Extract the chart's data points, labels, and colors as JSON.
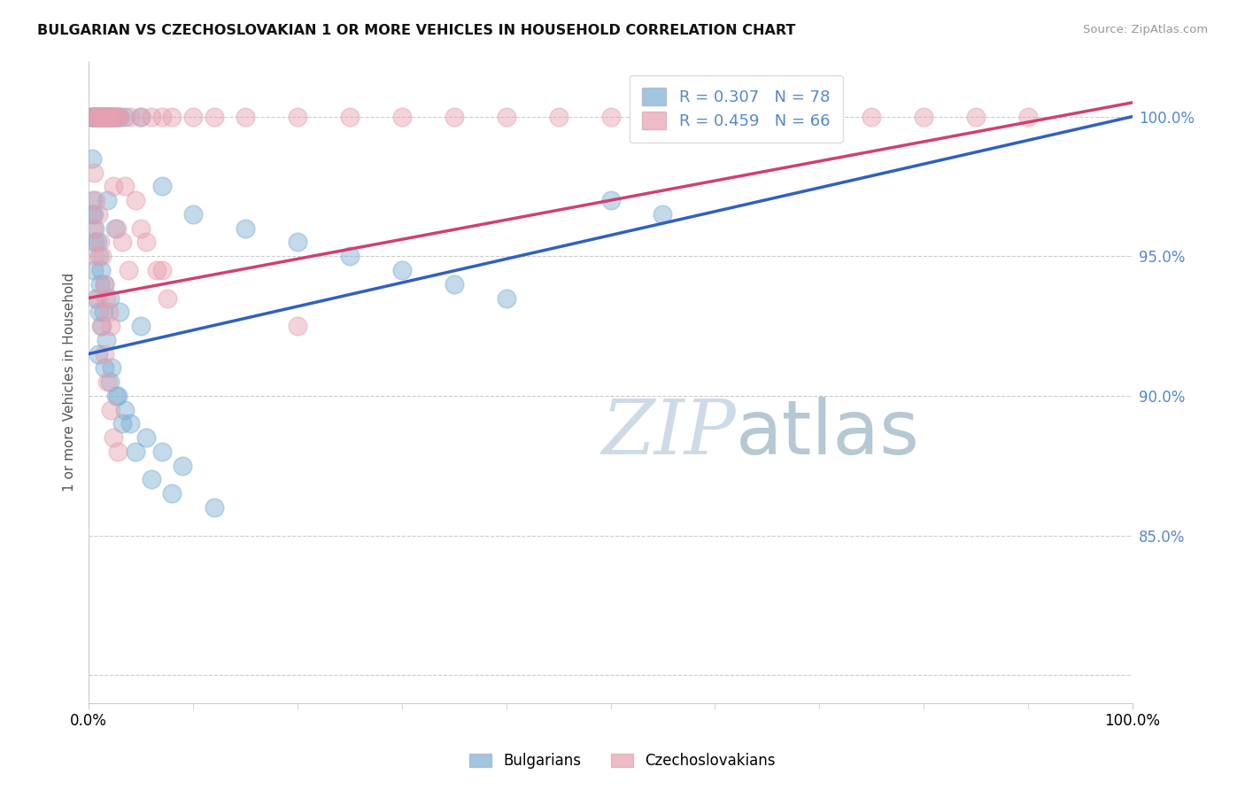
{
  "title": "BULGARIAN VS CZECHOSLOVAKIAN 1 OR MORE VEHICLES IN HOUSEHOLD CORRELATION CHART",
  "source": "Source: ZipAtlas.com",
  "ylabel": "1 or more Vehicles in Household",
  "xmin": 0.0,
  "xmax": 100.0,
  "ymin": 79.0,
  "ymax": 102.0,
  "yticks": [
    80.0,
    85.0,
    90.0,
    95.0,
    100.0
  ],
  "ytick_labels": [
    "",
    "85.0%",
    "90.0%",
    "95.0%",
    "100.0%"
  ],
  "blue_R": 0.307,
  "blue_N": 78,
  "pink_R": 0.459,
  "pink_N": 66,
  "blue_color": "#7bafd4",
  "pink_color": "#e8a0b0",
  "blue_line_color": "#3060c0",
  "pink_line_color": "#d04070",
  "legend_label_blue": "Bulgarians",
  "legend_label_pink": "Czechoslovakians",
  "tick_color": "#5588cc",
  "watermark_zip_color": "#c8d8e8",
  "watermark_atlas_color": "#a0b8cc",
  "blue_x": [
    0.2,
    0.3,
    0.4,
    0.5,
    0.6,
    0.7,
    0.8,
    0.9,
    1.0,
    1.1,
    1.2,
    1.3,
    1.4,
    1.5,
    1.6,
    1.7,
    1.8,
    1.9,
    2.0,
    2.1,
    2.2,
    2.3,
    2.5,
    2.7,
    3.0,
    3.5,
    0.3,
    0.4,
    0.5,
    0.6,
    0.8,
    1.0,
    1.2,
    1.5,
    2.0,
    3.0,
    5.0,
    7.0,
    10.0,
    15.0,
    20.0,
    25.0,
    30.0,
    35.0,
    40.0,
    50.0,
    55.0,
    60.0,
    65.0,
    70.0,
    5.0,
    1.8,
    2.5,
    0.5,
    0.7,
    1.0,
    1.3,
    0.9,
    1.5,
    2.0,
    2.8,
    3.5,
    4.0,
    5.5,
    7.0,
    9.0,
    0.3,
    0.6,
    1.1,
    1.4,
    1.7,
    2.2,
    2.6,
    3.2,
    4.5,
    6.0,
    8.0,
    12.0
  ],
  "blue_y": [
    100.0,
    100.0,
    100.0,
    100.0,
    100.0,
    100.0,
    100.0,
    100.0,
    100.0,
    100.0,
    100.0,
    100.0,
    100.0,
    100.0,
    100.0,
    100.0,
    100.0,
    100.0,
    100.0,
    100.0,
    100.0,
    100.0,
    100.0,
    100.0,
    100.0,
    100.0,
    98.5,
    97.0,
    96.5,
    96.0,
    95.5,
    95.0,
    94.5,
    94.0,
    93.5,
    93.0,
    92.5,
    97.5,
    96.5,
    96.0,
    95.5,
    95.0,
    94.5,
    94.0,
    93.5,
    97.0,
    96.5,
    100.0,
    100.0,
    100.0,
    100.0,
    97.0,
    96.0,
    94.5,
    93.5,
    93.0,
    92.5,
    91.5,
    91.0,
    90.5,
    90.0,
    89.5,
    89.0,
    88.5,
    88.0,
    87.5,
    96.5,
    95.5,
    94.0,
    93.0,
    92.0,
    91.0,
    90.0,
    89.0,
    88.0,
    87.0,
    86.5,
    86.0
  ],
  "pink_x": [
    0.4,
    0.6,
    0.8,
    1.0,
    1.2,
    1.4,
    1.6,
    1.8,
    2.0,
    2.2,
    2.5,
    2.8,
    3.0,
    4.0,
    5.0,
    6.0,
    7.0,
    8.0,
    10.0,
    12.0,
    15.0,
    20.0,
    25.0,
    30.0,
    35.0,
    40.0,
    45.0,
    50.0,
    55.0,
    60.0,
    65.0,
    70.0,
    75.0,
    80.0,
    85.0,
    90.0,
    0.5,
    0.7,
    0.9,
    1.1,
    1.3,
    1.5,
    1.7,
    1.9,
    2.1,
    2.4,
    2.7,
    3.2,
    3.8,
    4.5,
    5.5,
    6.5,
    7.5,
    0.4,
    0.6,
    0.9,
    1.2,
    1.5,
    1.8,
    2.1,
    2.4,
    2.8,
    3.5,
    5.0,
    7.0,
    20.0
  ],
  "pink_y": [
    100.0,
    100.0,
    100.0,
    100.0,
    100.0,
    100.0,
    100.0,
    100.0,
    100.0,
    100.0,
    100.0,
    100.0,
    100.0,
    100.0,
    100.0,
    100.0,
    100.0,
    100.0,
    100.0,
    100.0,
    100.0,
    100.0,
    100.0,
    100.0,
    100.0,
    100.0,
    100.0,
    100.0,
    100.0,
    100.0,
    100.0,
    100.0,
    100.0,
    100.0,
    100.0,
    100.0,
    98.0,
    97.0,
    96.5,
    95.5,
    95.0,
    94.0,
    93.5,
    93.0,
    92.5,
    97.5,
    96.0,
    95.5,
    94.5,
    97.0,
    95.5,
    94.5,
    93.5,
    96.0,
    95.0,
    93.5,
    92.5,
    91.5,
    90.5,
    89.5,
    88.5,
    88.0,
    97.5,
    96.0,
    94.5,
    92.5
  ],
  "line_blue_x0": 0.0,
  "line_blue_x1": 100.0,
  "line_blue_y0": 91.5,
  "line_blue_y1": 100.0,
  "line_pink_x0": 0.0,
  "line_pink_x1": 100.0,
  "line_pink_y0": 93.5,
  "line_pink_y1": 100.5
}
